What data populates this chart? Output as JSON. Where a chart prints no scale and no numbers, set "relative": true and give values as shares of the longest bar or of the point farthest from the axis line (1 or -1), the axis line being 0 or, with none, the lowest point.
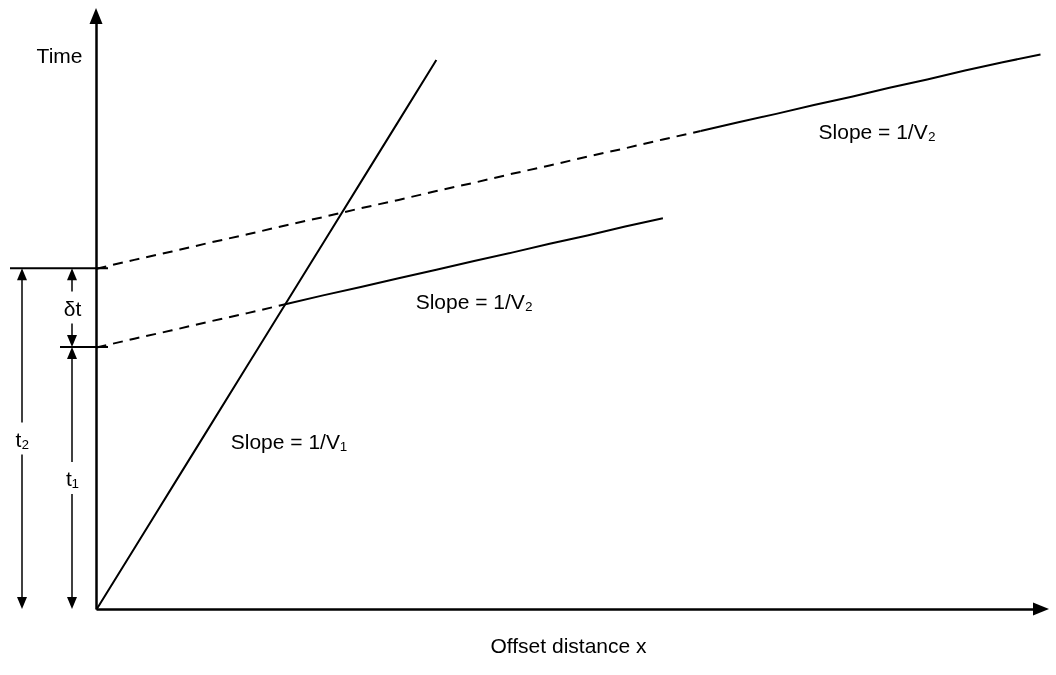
{
  "chart_data": {
    "type": "line",
    "relative": true,
    "tick_labels": false,
    "xlabel": "Offset distance x",
    "ylabel": "Time",
    "categories": [
      null,
      null,
      null,
      null,
      null,
      null,
      null,
      null,
      null,
      null,
      null,
      null,
      null,
      null,
      null,
      null,
      null,
      null,
      null,
      null,
      null,
      null,
      null,
      null,
      null,
      null
    ],
    "series": [
      {
        "name": "Slope = 1/V₁",
        "color": "#000000",
        "line_style": "solid",
        "values": [
          0,
          0.11,
          0.22,
          0.33,
          0.44,
          0.55,
          0.66,
          0.77,
          0.88,
          0.99,
          null,
          null,
          null,
          null,
          null,
          null,
          null,
          null,
          null,
          null,
          null,
          null,
          null,
          null,
          null,
          null
        ]
      },
      {
        "color": "#000000",
        "line_style": "dashed",
        "values": [
          0.472,
          0.488,
          0.503,
          0.519,
          0.534,
          0.55,
          null,
          null,
          null,
          null,
          null,
          null,
          null,
          null,
          null,
          null,
          null,
          null,
          null,
          null,
          null,
          null,
          null,
          null,
          null,
          null
        ]
      },
      {
        "name": "Slope = 1/V₂",
        "color": "#000000",
        "line_style": "solid",
        "values": [
          null,
          null,
          null,
          null,
          null,
          0.55,
          0.566,
          0.581,
          0.597,
          0.612,
          0.628,
          0.643,
          0.659,
          0.674,
          0.69,
          0.705,
          null,
          null,
          null,
          null,
          null,
          null,
          null,
          null,
          null,
          null
        ]
      },
      {
        "color": "#000000",
        "line_style": "dashed",
        "values": [
          0.614,
          0.63,
          0.645,
          0.661,
          0.676,
          0.692,
          0.707,
          0.723,
          0.738,
          0.754,
          0.769,
          0.785,
          0.8,
          0.816,
          0.831,
          0.847,
          0.862,
          null,
          null,
          null,
          null,
          null,
          null,
          null,
          null,
          null
        ]
      },
      {
        "name": "Slope = 1/V₂",
        "color": "#000000",
        "line_style": "solid",
        "values": [
          null,
          null,
          null,
          null,
          null,
          null,
          null,
          null,
          null,
          null,
          null,
          null,
          null,
          null,
          null,
          null,
          0.862,
          0.878,
          0.893,
          0.909,
          0.924,
          0.94,
          0.955,
          0.971,
          0.986,
          1
        ]
      }
    ],
    "annotations": [
      "t₂",
      "t₁",
      "δt"
    ]
  }
}
